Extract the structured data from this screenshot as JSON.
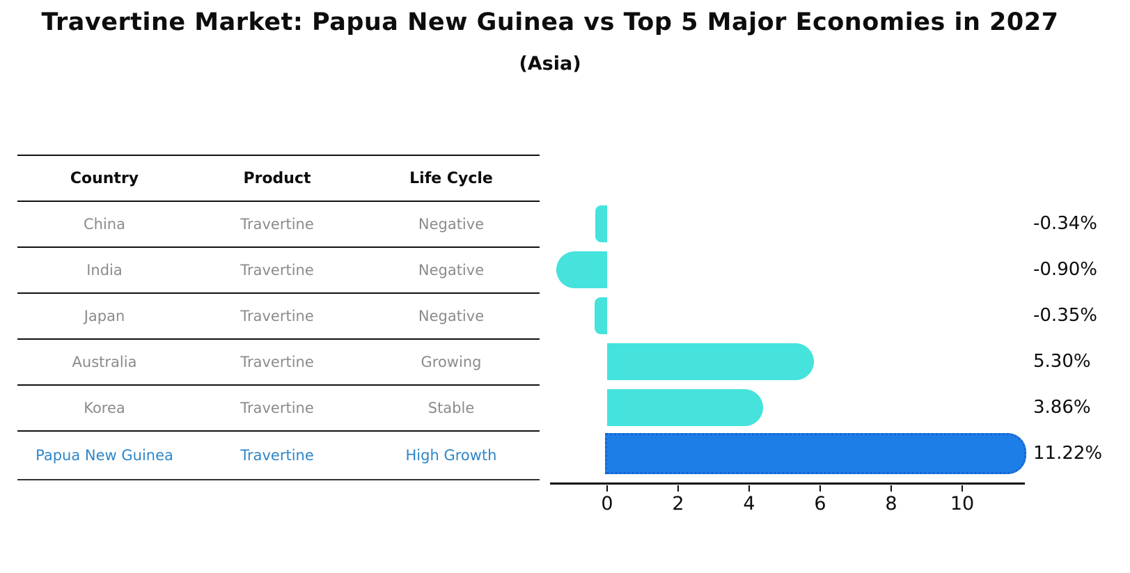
{
  "title": "Travertine Market: Papua New Guinea vs Top 5 Major Economies in 2027",
  "subtitle": "(Asia)",
  "table": {
    "headers": [
      "Country",
      "Product",
      "Life Cycle"
    ],
    "rows": [
      {
        "country": "China",
        "product": "Travertine",
        "life_cycle": "Negative",
        "highlight": false
      },
      {
        "country": "India",
        "product": "Travertine",
        "life_cycle": "Negative",
        "highlight": false
      },
      {
        "country": "Japan",
        "product": "Travertine",
        "life_cycle": "Negative",
        "highlight": false
      },
      {
        "country": "Australia",
        "product": "Travertine",
        "life_cycle": "Growing",
        "highlight": false
      },
      {
        "country": "Korea",
        "product": "Travertine",
        "life_cycle": "Stable",
        "highlight": false
      },
      {
        "country": "Papua New Guinea",
        "product": "Travertine",
        "life_cycle": "High Growth",
        "highlight": true
      }
    ]
  },
  "chart_data": {
    "type": "bar",
    "orientation": "horizontal",
    "title": "Travertine Market: Papua New Guinea vs Top 5 Major Economies in 2027",
    "subtitle": "(Asia)",
    "categories": [
      "China",
      "India",
      "Japan",
      "Australia",
      "Korea",
      "Papua New Guinea"
    ],
    "values": [
      -0.34,
      -0.9,
      -0.35,
      5.3,
      3.86,
      11.22
    ],
    "value_labels": [
      "-0.34%",
      "-0.90%",
      "-0.35%",
      "5.30%",
      "3.86%",
      "11.22%"
    ],
    "xticks": [
      0,
      2,
      4,
      6,
      8,
      10
    ],
    "xlim": [
      -1.6,
      11.8
    ],
    "grid": false,
    "legend": null,
    "bar_color": "#45e3dc",
    "highlight_color": "#1e7ee8",
    "highlight_border_color": "#1565d0",
    "highlight_index": 5,
    "text_color_normal": "#8b8b8b",
    "text_color_highlight": "#2e86c9"
  }
}
